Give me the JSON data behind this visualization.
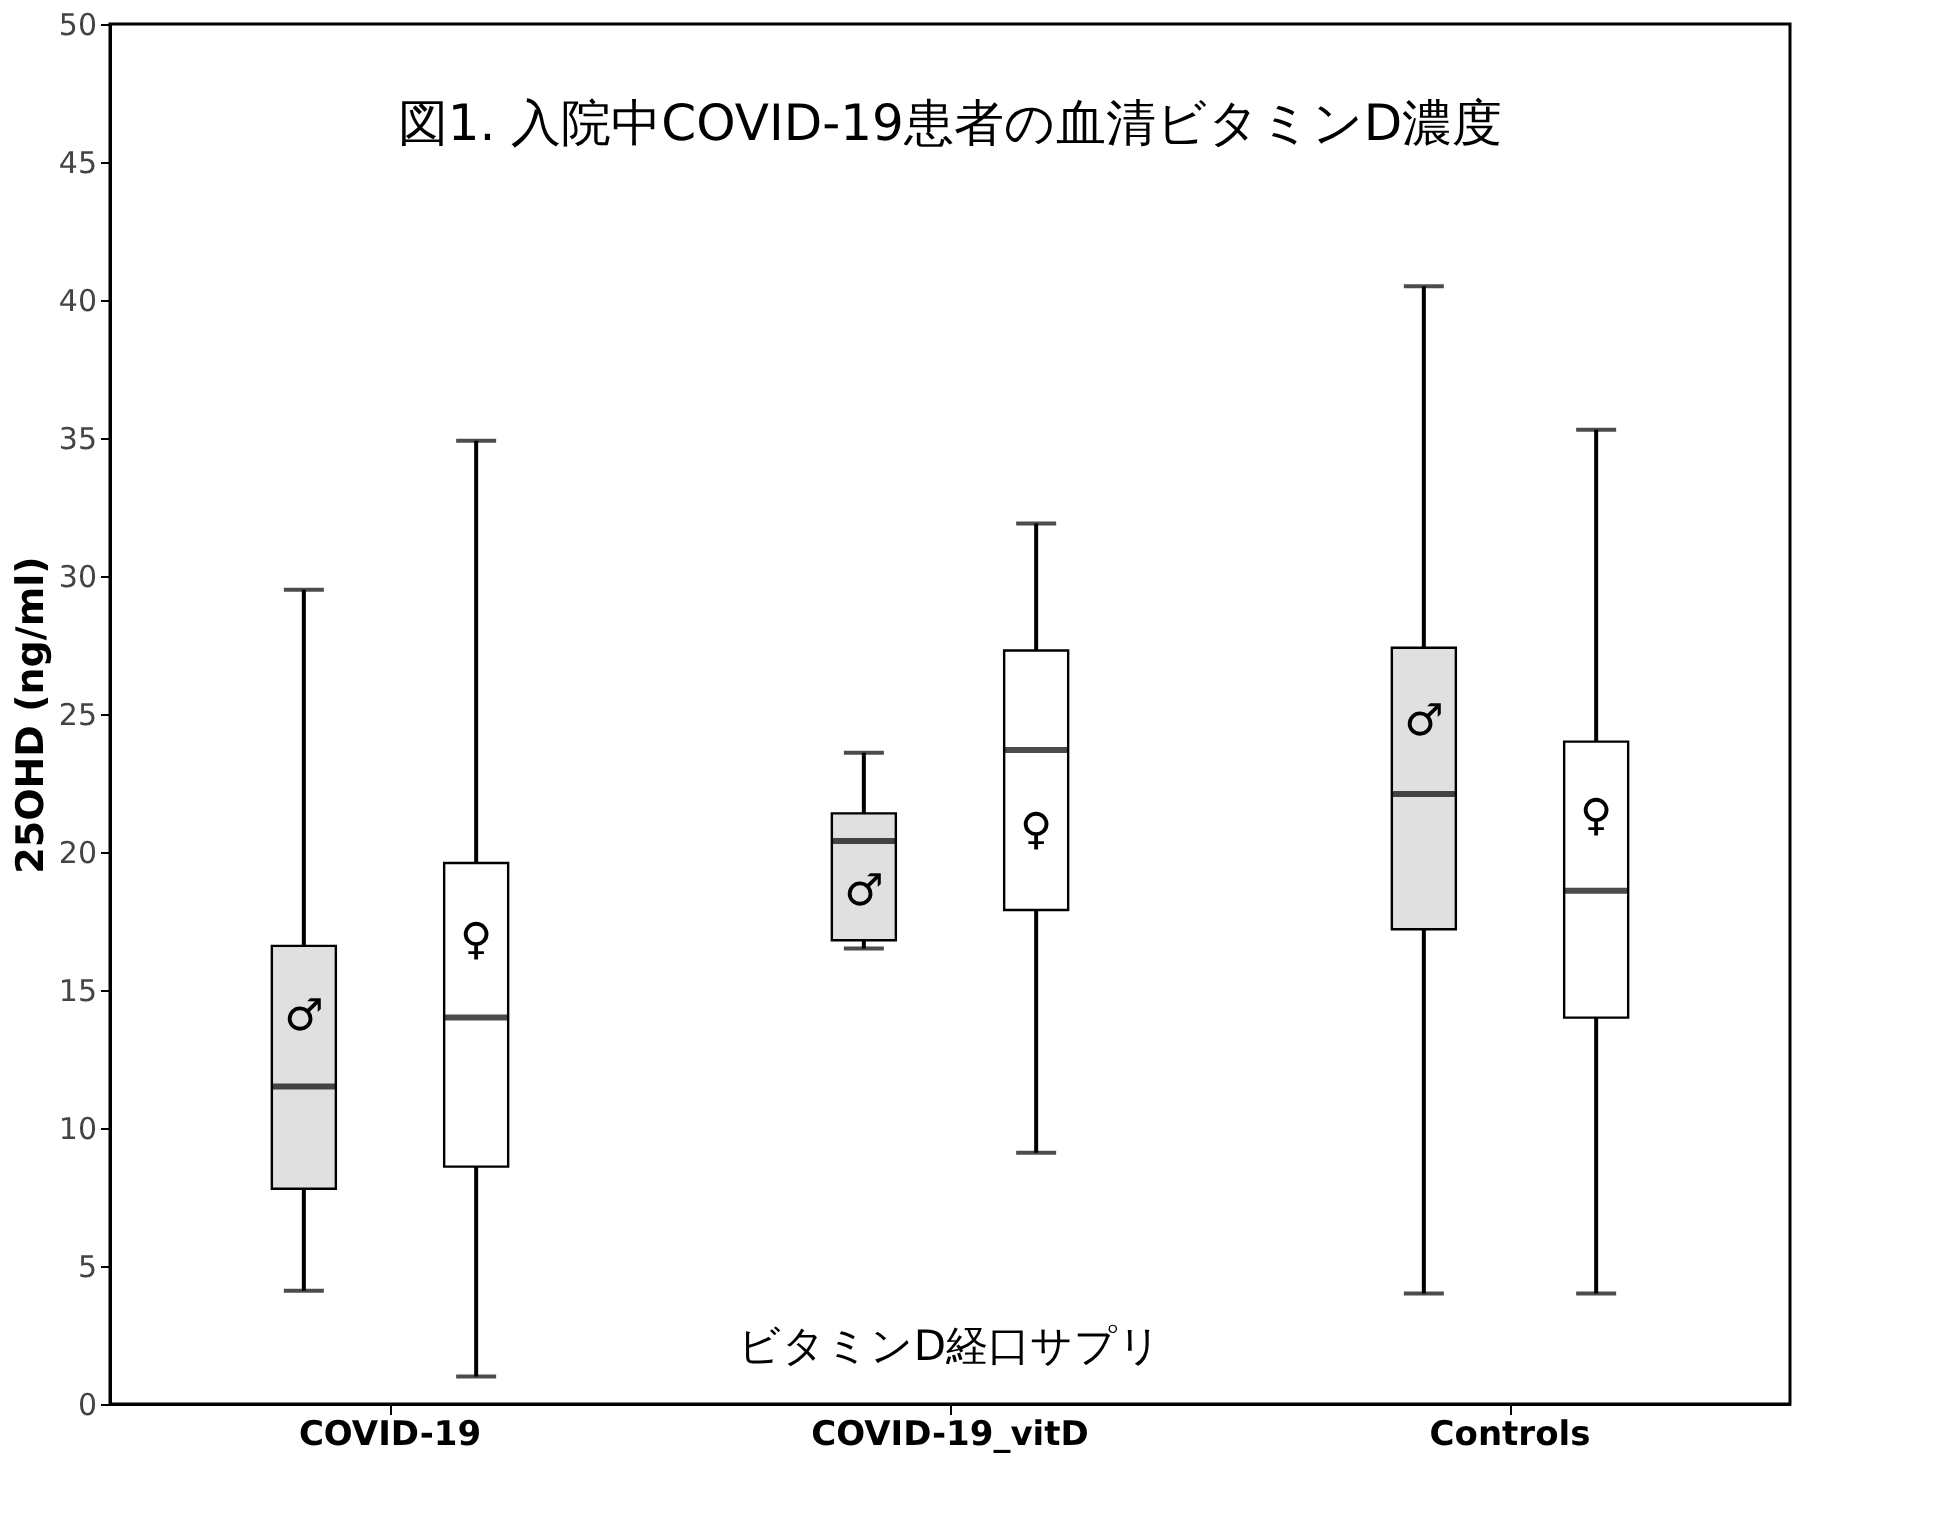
{
  "chart_data": {
    "type": "box",
    "title": "図1. 入院中COVID-19患者の血清ビタミンD濃度",
    "ylabel": "25OHD (ng/ml)",
    "categories": [
      "COVID-19",
      "COVID-19_vitD",
      "Controls"
    ],
    "series": [
      {
        "name": "♂",
        "color": "#e0e0e0",
        "boxes": [
          {
            "low": 4.1,
            "q1": 7.8,
            "median": 11.5,
            "q3": 16.6,
            "high": 29.5
          },
          {
            "low": 16.5,
            "q1": 16.8,
            "median": 20.4,
            "q3": 21.4,
            "high": 23.6
          },
          {
            "low": 4.0,
            "q1": 17.2,
            "median": 22.1,
            "q3": 27.4,
            "high": 40.5
          }
        ]
      },
      {
        "name": "♀",
        "color": "#ffffff",
        "boxes": [
          {
            "low": 1.0,
            "q1": 8.6,
            "median": 14.0,
            "q3": 19.6,
            "high": 34.9
          },
          {
            "low": 9.1,
            "q1": 17.9,
            "median": 23.7,
            "q3": 27.3,
            "high": 31.9
          },
          {
            "low": 4.0,
            "q1": 14.0,
            "median": 18.6,
            "q3": 24.0,
            "high": 35.3
          }
        ]
      }
    ],
    "annotations": [
      "ビタミンD経口サプリ"
    ],
    "ylim": [
      0,
      50
    ],
    "yticks": [
      0,
      5,
      10,
      15,
      20,
      25,
      30,
      35,
      40,
      45,
      50
    ],
    "grid": false,
    "legend": false
  }
}
